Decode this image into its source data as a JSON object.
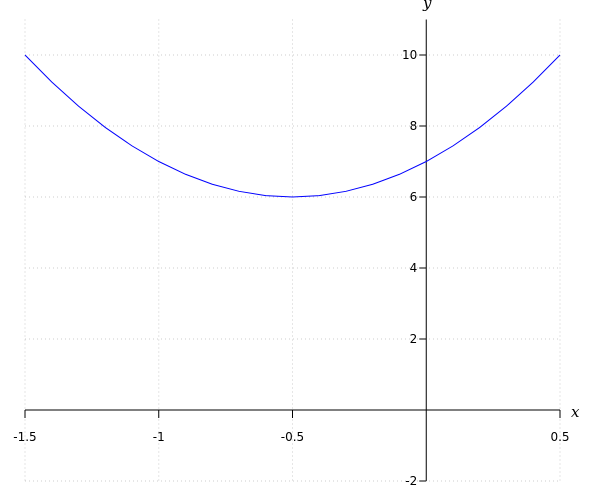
{
  "chart_data": {
    "type": "line",
    "x_label": "x",
    "y_label": "y",
    "x": [
      -1.5,
      -1.4,
      -1.3,
      -1.2,
      -1.1,
      -1.0,
      -0.9,
      -0.8,
      -0.7,
      -0.6,
      -0.5,
      -0.4,
      -0.3,
      -0.2,
      -0.1,
      0,
      0.1,
      0.2,
      0.3,
      0.4,
      0.5
    ],
    "series": [
      {
        "color": "#0000ff",
        "values": [
          10,
          9.24,
          8.56,
          7.96,
          7.44,
          7,
          6.64,
          6.36,
          6.16,
          6.04,
          6,
          6.04,
          6.16,
          6.36,
          6.64,
          7,
          7.44,
          7.96,
          8.56,
          9.24,
          10
        ]
      }
    ],
    "xlim": [
      -1.5,
      0.5
    ],
    "ylim": [
      -2,
      11
    ],
    "xticks": [
      -1.5,
      -1,
      -0.5,
      0.5
    ],
    "yticks": [
      -2,
      2,
      4,
      6,
      8,
      10
    ],
    "grid": true
  }
}
